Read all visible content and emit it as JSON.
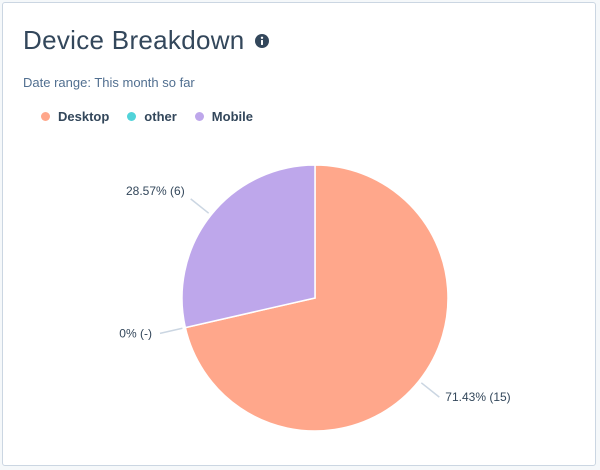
{
  "card": {
    "title": "Device Breakdown",
    "info_icon": "info-circle-icon",
    "date_range_label": "Date range:",
    "date_range_value": "This month so far"
  },
  "colors": {
    "Desktop": "#ffa78b",
    "other": "#51d3d9",
    "Mobile": "#bea7eb",
    "label_line": "#cbd6e2"
  },
  "chart_data": {
    "type": "pie",
    "legend_position": "top-left",
    "slices": [
      {
        "name": "Desktop",
        "percent": 71.43,
        "count": 15,
        "label": "71.43% (15)"
      },
      {
        "name": "other",
        "percent": 0,
        "count": 0,
        "label": "0% (-)"
      },
      {
        "name": "Mobile",
        "percent": 28.57,
        "count": 6,
        "label": "28.57% (6)"
      }
    ]
  }
}
